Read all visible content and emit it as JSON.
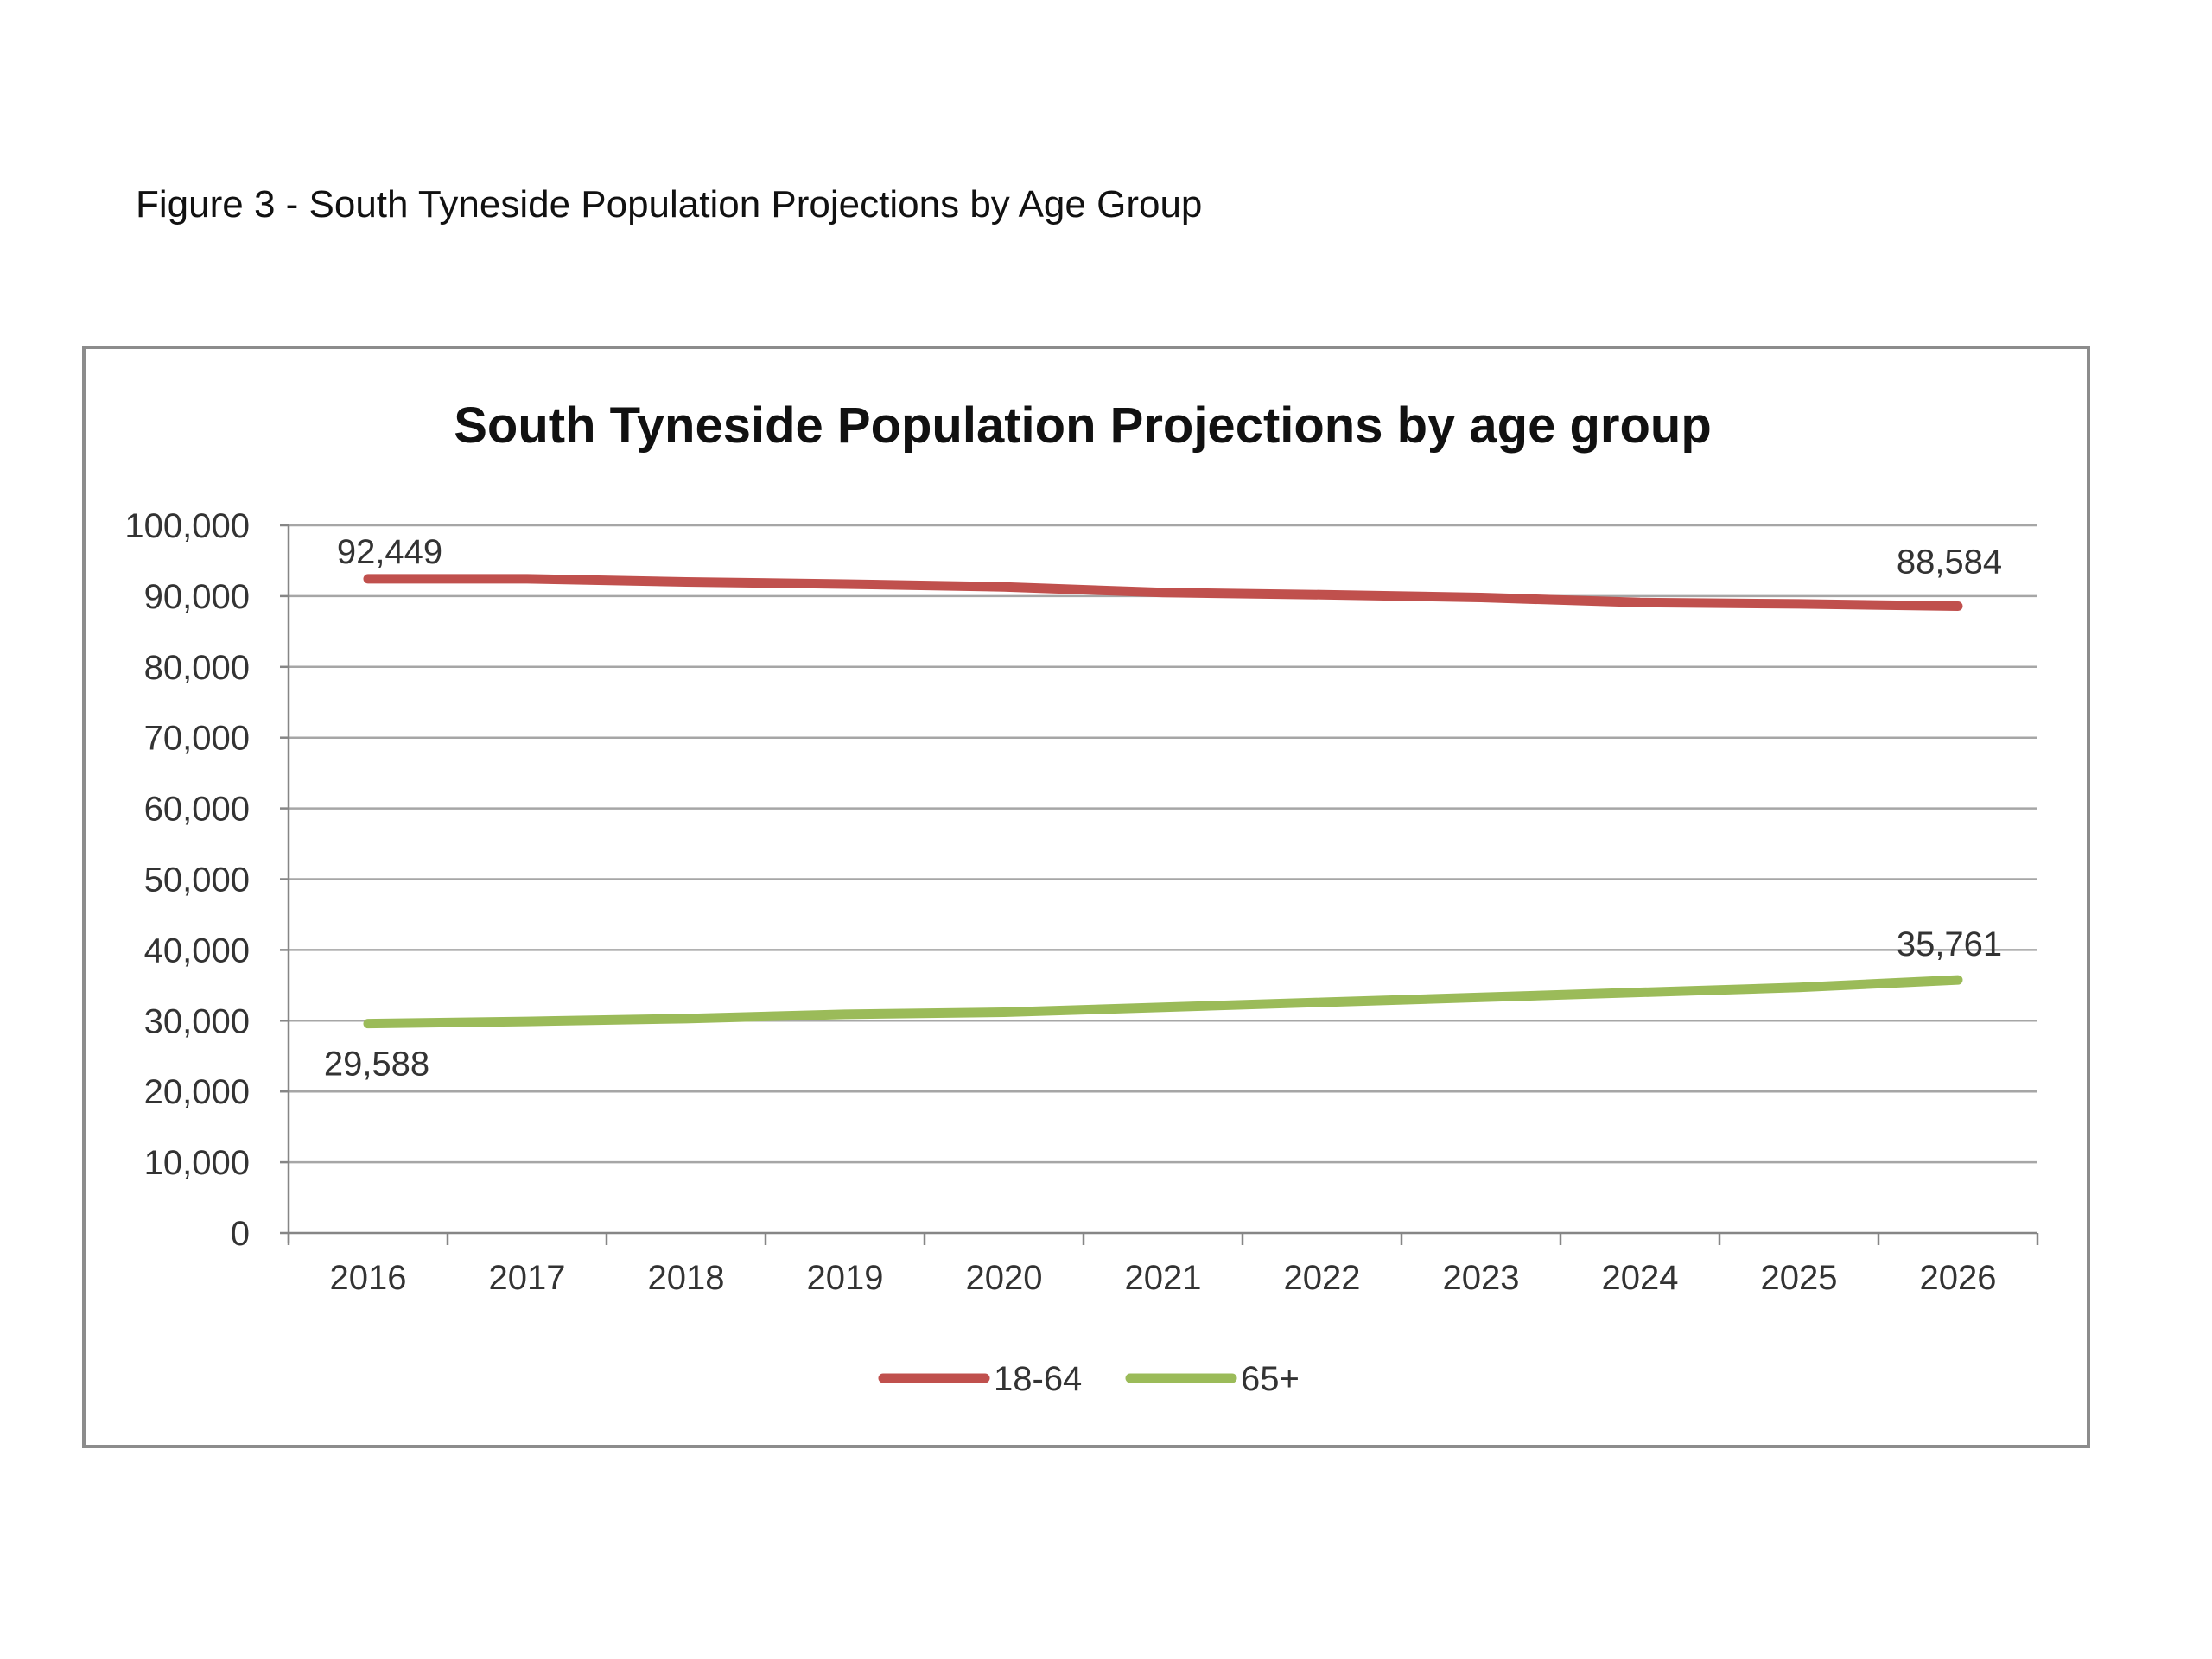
{
  "caption": "Figure 3 - South Tyneside Population Projections by Age Group",
  "chart_data": {
    "type": "line",
    "title": "South Tyneside Population Projections by age group",
    "xlabel": "",
    "ylabel": "",
    "ylim": [
      0,
      100000
    ],
    "yticks": [
      0,
      10000,
      20000,
      30000,
      40000,
      50000,
      60000,
      70000,
      80000,
      90000,
      100000
    ],
    "ytick_labels": [
      "0",
      "10,000",
      "20,000",
      "30,000",
      "40,000",
      "50,000",
      "60,000",
      "70,000",
      "80,000",
      "90,000",
      "100,000"
    ],
    "categories": [
      "2016",
      "2017",
      "2018",
      "2019",
      "2020",
      "2021",
      "2022",
      "2023",
      "2024",
      "2025",
      "2026"
    ],
    "grid": true,
    "legend_position": "bottom",
    "series": [
      {
        "name": "18-64",
        "color": "#c0504d",
        "values": [
          92449,
          92450,
          92000,
          91700,
          91300,
          90500,
          90200,
          89800,
          89100,
          88900,
          88584
        ],
        "data_labels": [
          {
            "index": 0,
            "text": "92,449"
          },
          {
            "index": 10,
            "text": "88,584"
          }
        ]
      },
      {
        "name": "65+",
        "color": "#9bbb59",
        "values": [
          29588,
          29900,
          30300,
          30900,
          31200,
          31900,
          32600,
          33300,
          34000,
          34700,
          35761
        ],
        "data_labels": [
          {
            "index": 0,
            "text": "29,588"
          },
          {
            "index": 10,
            "text": "35,761"
          }
        ]
      }
    ]
  }
}
